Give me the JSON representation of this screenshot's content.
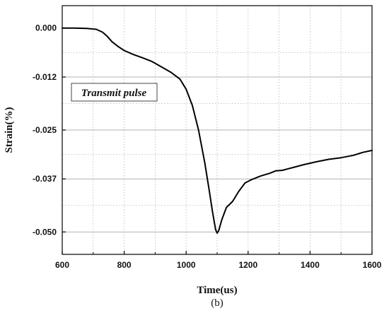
{
  "chart_data": {
    "type": "line",
    "title": "",
    "xlabel": "Time(us)",
    "ylabel": "Strain(%)",
    "caption": "(b)",
    "annotation": "Transmit pulse",
    "xlim": [
      600,
      1600
    ],
    "ylim": [
      -0.0555,
      0.0055
    ],
    "x_ticks": [
      600,
      800,
      1000,
      1200,
      1400,
      1600
    ],
    "y_ticks": [
      0.0,
      -0.012,
      -0.025,
      -0.037,
      -0.05
    ],
    "y_tick_labels": [
      "0.000",
      "-0.012",
      "-0.025",
      "-0.037",
      "-0.050"
    ],
    "grid": true,
    "line_color": "#000000",
    "series": [
      {
        "x": [
          600,
          640,
          680,
          710,
          730,
          745,
          760,
          780,
          800,
          830,
          860,
          890,
          920,
          950,
          980,
          1000,
          1020,
          1040,
          1060,
          1075,
          1085,
          1095,
          1100,
          1105,
          1115,
          1130,
          1150,
          1170,
          1190,
          1210,
          1240,
          1270,
          1290,
          1310,
          1330,
          1350,
          1380,
          1420,
          1460,
          1500,
          1540,
          1570,
          1600
        ],
        "y": [
          0.0,
          0.0,
          -0.0001,
          -0.0003,
          -0.001,
          -0.002,
          -0.0033,
          -0.0045,
          -0.0055,
          -0.0065,
          -0.0073,
          -0.0082,
          -0.0095,
          -0.0108,
          -0.0125,
          -0.015,
          -0.019,
          -0.025,
          -0.033,
          -0.04,
          -0.045,
          -0.0494,
          -0.0503,
          -0.0497,
          -0.047,
          -0.044,
          -0.0425,
          -0.04,
          -0.038,
          -0.0372,
          -0.0363,
          -0.0356,
          -0.035,
          -0.0349,
          -0.0345,
          -0.0341,
          -0.0335,
          -0.0328,
          -0.0322,
          -0.0318,
          -0.0312,
          -0.0305,
          -0.03
        ]
      }
    ]
  }
}
